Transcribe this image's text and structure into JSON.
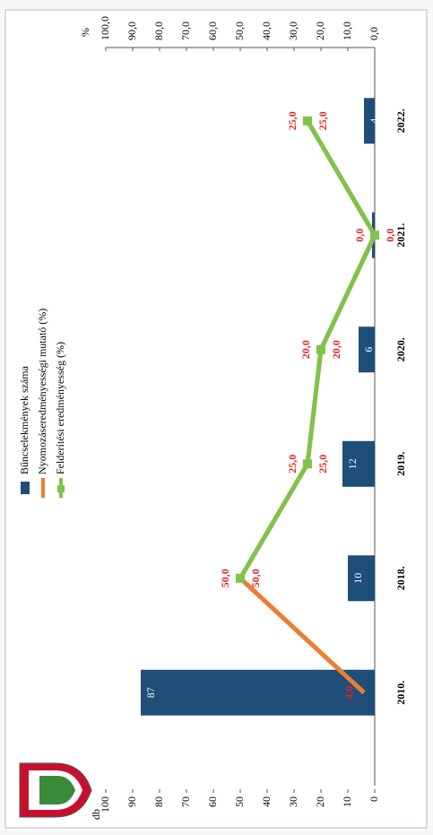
{
  "chart_data": {
    "type": "bar_line",
    "categories": [
      "2010.",
      "2018.",
      "2019.",
      "2020.",
      "2021.",
      "2022."
    ],
    "series": [
      {
        "name": "Bűncselekmények száma",
        "type": "bar",
        "axis": "y",
        "color": "#1f4e79",
        "values": [
          87,
          10,
          12,
          6,
          1,
          4
        ]
      },
      {
        "name": "Nyomozáseredményességi mutató (%)",
        "type": "line",
        "axis": "y2",
        "color": "#ed7d31",
        "values": [
          4.0,
          50.0,
          25.0,
          20.0,
          0.0,
          25.0
        ],
        "value_labels": [
          "4,0",
          "50,0",
          "25,0",
          "20,0",
          "0,0",
          "25,0"
        ]
      },
      {
        "name": "Felderítési eredményesség (%)",
        "type": "line",
        "axis": "y2",
        "color": "#7fc34a",
        "values": [
          null,
          50.0,
          25.0,
          20.0,
          0.0,
          25.0
        ],
        "value_labels": [
          null,
          "50,0",
          "25,0",
          "20,0",
          "0,0",
          "25,0"
        ]
      }
    ],
    "y_label": "db",
    "y2_label": "%",
    "ylim": [
      0,
      100
    ],
    "yticks": [
      0,
      10,
      20,
      30,
      40,
      50,
      60,
      70,
      80,
      90,
      100
    ],
    "y2lim": [
      0,
      100
    ],
    "y2ticks": [
      {
        "value": 0,
        "label": "0,0"
      },
      {
        "value": 10,
        "label": "10,0"
      },
      {
        "value": 20,
        "label": "20,0"
      },
      {
        "value": 30,
        "label": "30,0"
      },
      {
        "value": 40,
        "label": "40,0"
      },
      {
        "value": 50,
        "label": "50,0"
      },
      {
        "value": 60,
        "label": "60,0"
      },
      {
        "value": 70,
        "label": "70,0"
      },
      {
        "value": 80,
        "label": "80,0"
      },
      {
        "value": 90,
        "label": "90,0"
      },
      {
        "value": 100,
        "label": "100,0"
      }
    ],
    "value_label_color": "#e02424"
  }
}
